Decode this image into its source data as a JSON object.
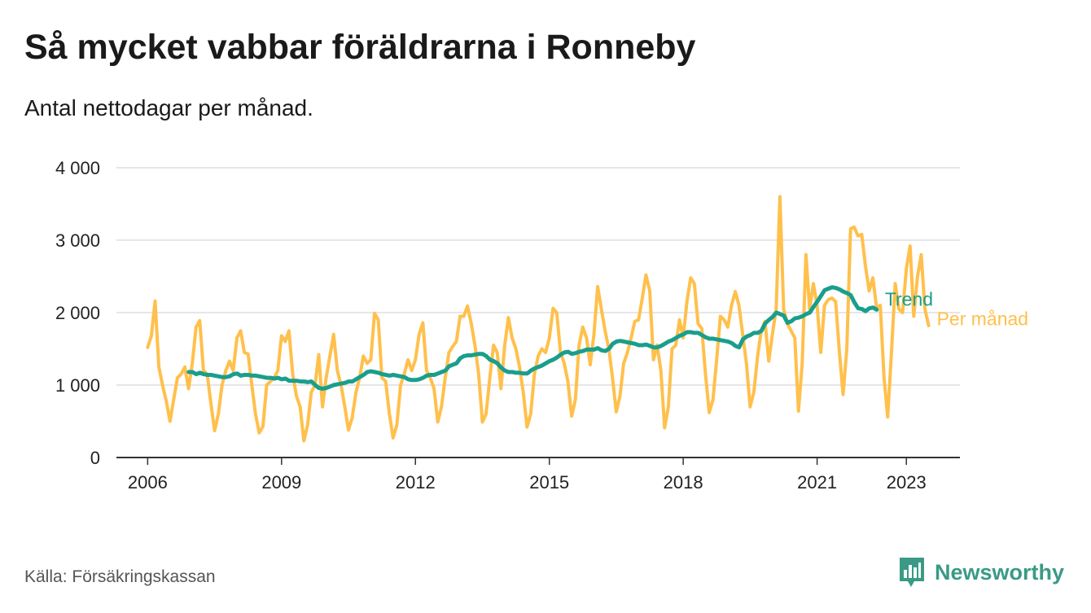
{
  "title": "Så mycket vabbar föräldrarna i Ronneby",
  "subtitle": "Antal nettodagar per månad.",
  "source": "Källa: Försäkringskassan",
  "brand": {
    "name": "Newsworthy",
    "icon": "newsworthy-logo-icon"
  },
  "colors": {
    "monthly": "#FFC04C",
    "trend": "#1A9E8C",
    "grid": "#dddddd",
    "axis": "#333333",
    "brand": "#3a9a86"
  },
  "chart_data": {
    "type": "line",
    "title": "Så mycket vabbar föräldrarna i Ronneby",
    "subtitle": "Antal nettodagar per månad.",
    "xlabel": "",
    "ylabel": "",
    "ylim": [
      0,
      4000
    ],
    "xlim": [
      2005.3,
      2024.2
    ],
    "yticks": [
      0,
      1000,
      2000,
      3000,
      4000
    ],
    "ytick_labels": [
      "0",
      "1 000",
      "2 000",
      "3 000",
      "4 000"
    ],
    "xticks": [
      2006,
      2009,
      2012,
      2015,
      2018,
      2021,
      2023
    ],
    "xtick_labels": [
      "2006",
      "2009",
      "2012",
      "2015",
      "2018",
      "2021",
      "2023"
    ],
    "grid": true,
    "legend_placement": "right end labels",
    "series": [
      {
        "name": "Per månad",
        "key": "monthly",
        "x_start": 2006.0,
        "step": 0.08333,
        "values": [
          1520,
          1680,
          2160,
          1250,
          1000,
          780,
          500,
          800,
          1100,
          1150,
          1250,
          950,
          1300,
          1800,
          1890,
          1200,
          1150,
          750,
          370,
          600,
          1000,
          1200,
          1330,
          1200,
          1650,
          1750,
          1450,
          1430,
          1000,
          600,
          340,
          430,
          1000,
          1050,
          1100,
          1200,
          1680,
          1600,
          1750,
          1150,
          850,
          700,
          230,
          450,
          900,
          1000,
          1420,
          700,
          1100,
          1400,
          1700,
          1200,
          1000,
          700,
          380,
          550,
          900,
          1100,
          1400,
          1300,
          1350,
          1990,
          1900,
          1100,
          1050,
          600,
          270,
          450,
          1000,
          1150,
          1350,
          1200,
          1350,
          1700,
          1860,
          1200,
          1100,
          950,
          490,
          700,
          1100,
          1450,
          1530,
          1600,
          1950,
          1950,
          2090,
          1850,
          1550,
          1150,
          490,
          600,
          1100,
          1550,
          1450,
          950,
          1550,
          1930,
          1650,
          1500,
          1250,
          900,
          420,
          600,
          1150,
          1400,
          1500,
          1450,
          1650,
          2060,
          2000,
          1450,
          1300,
          1050,
          570,
          800,
          1550,
          1800,
          1650,
          1280,
          1700,
          2360,
          2050,
          1750,
          1500,
          1100,
          630,
          850,
          1300,
          1450,
          1650,
          1880,
          1900,
          2200,
          2520,
          2300,
          1350,
          1550,
          1200,
          410,
          700,
          1500,
          1550,
          1900,
          1650,
          2150,
          2480,
          2400,
          1850,
          1780,
          1150,
          620,
          800,
          1350,
          1950,
          1900,
          1800,
          2100,
          2290,
          2100,
          1700,
          1300,
          700,
          900,
          1400,
          1750,
          1880,
          1330,
          1700,
          2050,
          3600,
          2050,
          1850,
          1750,
          1650,
          640,
          1300,
          2800,
          2050,
          2400,
          2100,
          1450,
          2100,
          2180,
          2200,
          2150,
          1450,
          870,
          1500,
          3160,
          3180,
          3060,
          3080,
          2650,
          2300,
          2480,
          2070,
          2100,
          1100,
          560,
          1450,
          2400,
          2050,
          2000,
          2600,
          2920,
          1950,
          2500,
          2800,
          2050,
          1820
        ]
      },
      {
        "name": "Trend",
        "key": "trend",
        "x_start": 2006.92,
        "step": 0.08333,
        "values": [
          1180,
          1180,
          1150,
          1170,
          1150,
          1140,
          1140,
          1130,
          1120,
          1110,
          1110,
          1120,
          1150,
          1160,
          1130,
          1140,
          1140,
          1130,
          1130,
          1120,
          1110,
          1100,
          1100,
          1090,
          1100,
          1080,
          1090,
          1060,
          1060,
          1060,
          1050,
          1050,
          1040,
          1050,
          1000,
          960,
          950,
          960,
          980,
          1000,
          1010,
          1020,
          1030,
          1050,
          1050,
          1080,
          1110,
          1140,
          1180,
          1190,
          1180,
          1170,
          1150,
          1140,
          1130,
          1140,
          1130,
          1120,
          1110,
          1080,
          1070,
          1070,
          1080,
          1100,
          1130,
          1140,
          1140,
          1160,
          1180,
          1200,
          1260,
          1280,
          1300,
          1370,
          1400,
          1410,
          1410,
          1420,
          1430,
          1430,
          1400,
          1350,
          1330,
          1300,
          1240,
          1200,
          1180,
          1180,
          1170,
          1170,
          1160,
          1160,
          1200,
          1230,
          1250,
          1270,
          1300,
          1330,
          1350,
          1380,
          1420,
          1450,
          1460,
          1430,
          1440,
          1460,
          1470,
          1490,
          1490,
          1490,
          1510,
          1480,
          1470,
          1500,
          1570,
          1600,
          1610,
          1600,
          1590,
          1580,
          1570,
          1550,
          1550,
          1560,
          1540,
          1520,
          1520,
          1540,
          1570,
          1600,
          1620,
          1650,
          1680,
          1700,
          1730,
          1730,
          1720,
          1720,
          1690,
          1660,
          1640,
          1640,
          1630,
          1620,
          1610,
          1600,
          1580,
          1540,
          1520,
          1630,
          1670,
          1690,
          1720,
          1720,
          1750,
          1850,
          1900,
          1940,
          2000,
          1980,
          1960,
          1860,
          1880,
          1920,
          1930,
          1950,
          1980,
          2000,
          2080,
          2150,
          2230,
          2310,
          2330,
          2350,
          2340,
          2320,
          2290,
          2270,
          2240,
          2140,
          2060,
          2050,
          2020,
          2060,
          2070,
          2040
        ]
      }
    ]
  }
}
